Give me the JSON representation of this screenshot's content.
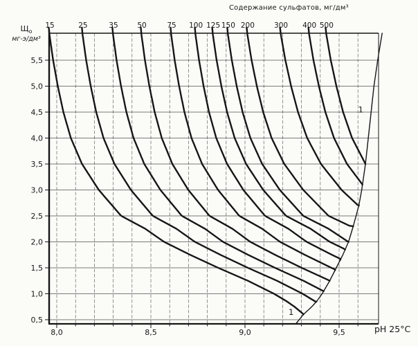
{
  "chart_data": {
    "type": "line",
    "title": "Содержание сульфатов, мг/дм³",
    "top_axis": {
      "title": "Содержание сульфатов, мг/дм³",
      "ticks": [
        "15",
        "25",
        "35",
        "50",
        "75",
        "100",
        "125",
        "150",
        "200",
        "300",
        "400",
        "500"
      ]
    },
    "x_axis": {
      "label": "pH 25°C",
      "ticks": [
        "8,0",
        "8,5",
        "9,0",
        "9,5"
      ],
      "tick_values": [
        8.0,
        8.5,
        9.0,
        9.5
      ],
      "range": [
        7.96,
        9.71
      ],
      "gridline_step": 0.1
    },
    "y_axis": {
      "label_main": "Щ",
      "label_sub": "о",
      "label_unit": "мг-э/дм³",
      "ticks": [
        "0,5",
        "1,0",
        "1,5",
        "2,0",
        "2,5",
        "3,0",
        "3,5",
        "4,0",
        "4,5",
        "5,0",
        "5,5"
      ],
      "tick_values": [
        0.5,
        1.0,
        1.5,
        2.0,
        2.5,
        3.0,
        3.5,
        4.0,
        4.5,
        5.0,
        5.5
      ],
      "range": [
        0.42,
        6.02
      ],
      "gridline_step": 0.5
    },
    "series": [
      {
        "sulfate": 15,
        "label": "15",
        "start_ph": 7.956,
        "end_alk": 0.6,
        "widen": 0.99
      },
      {
        "sulfate": 25,
        "label": "25",
        "start_ph": 8.132,
        "end_alk": 0.85,
        "widen": 0.97
      },
      {
        "sulfate": 35,
        "label": "35",
        "start_ph": 8.294,
        "end_alk": 1.05,
        "widen": 0.95
      },
      {
        "sulfate": 50,
        "label": "50",
        "start_ph": 8.445,
        "end_alk": 1.25,
        "widen": 0.94
      },
      {
        "sulfate": 75,
        "label": "75",
        "start_ph": 8.603,
        "end_alk": 1.45,
        "widen": 0.94
      },
      {
        "sulfate": 100,
        "label": "100",
        "start_ph": 8.732,
        "end_alk": 1.65,
        "widen": 0.96
      },
      {
        "sulfate": 125,
        "label": "125",
        "start_ph": 8.824,
        "end_alk": 1.85,
        "widen": 1.01
      },
      {
        "sulfate": 150,
        "label": "150",
        "start_ph": 8.904,
        "end_alk": 2.0,
        "widen": 1.04
      },
      {
        "sulfate": 200,
        "label": "200",
        "start_ph": 9.007,
        "end_alk": 2.3,
        "widen": 1.12
      },
      {
        "sulfate": 300,
        "label": "300",
        "start_ph": 9.184,
        "end_alk": 2.7,
        "widen": 1.22
      },
      {
        "sulfate": 400,
        "label": "400",
        "start_ph": 9.335,
        "end_alk": 3.1,
        "widen": 1.15
      },
      {
        "sulfate": 500,
        "label": "500",
        "start_ph": 9.426,
        "end_alk": 3.5,
        "widen": 1.19
      }
    ],
    "shape_delta_profile": [
      [
        0.5,
        1.4
      ],
      [
        0.6,
        1.37
      ],
      [
        0.75,
        1.32
      ],
      [
        0.85,
        1.28
      ],
      [
        1.0,
        1.21
      ],
      [
        1.25,
        1.07
      ],
      [
        1.5,
        0.91
      ],
      [
        1.75,
        0.76
      ],
      [
        2.0,
        0.62
      ],
      [
        2.25,
        0.52
      ],
      [
        2.5,
        0.39
      ],
      [
        3.0,
        0.27
      ],
      [
        3.5,
        0.18
      ],
      [
        4.0,
        0.12
      ],
      [
        4.5,
        0.08
      ],
      [
        5.0,
        0.05
      ],
      [
        5.5,
        0.025
      ],
      [
        6.0,
        0.005
      ],
      [
        6.2,
        0.0
      ]
    ],
    "envelope": {
      "name": "1",
      "points": [
        [
          0.42,
          9.27
        ],
        [
          0.6,
          9.31
        ],
        [
          0.75,
          9.355
        ],
        [
          0.85,
          9.38
        ],
        [
          1.0,
          9.41
        ],
        [
          1.25,
          9.45
        ],
        [
          1.5,
          9.485
        ],
        [
          1.75,
          9.52
        ],
        [
          2.0,
          9.55
        ],
        [
          2.3,
          9.575
        ],
        [
          2.5,
          9.59
        ],
        [
          2.7,
          9.605
        ],
        [
          3.0,
          9.62
        ],
        [
          3.5,
          9.64
        ],
        [
          4.0,
          9.655
        ],
        [
          4.5,
          9.67
        ],
        [
          5.0,
          9.685
        ],
        [
          5.5,
          9.705
        ],
        [
          6.05,
          9.73
        ]
      ],
      "labels": [
        {
          "text": "1",
          "ph": 9.245,
          "alk": 0.65
        },
        {
          "text": "1",
          "ph": 9.615,
          "alk": 4.55
        }
      ]
    },
    "grid": true,
    "legend": "none",
    "colors": {
      "ink": "#161616",
      "grid": "#3d3d3d",
      "paper": "#fbfbf8"
    }
  }
}
